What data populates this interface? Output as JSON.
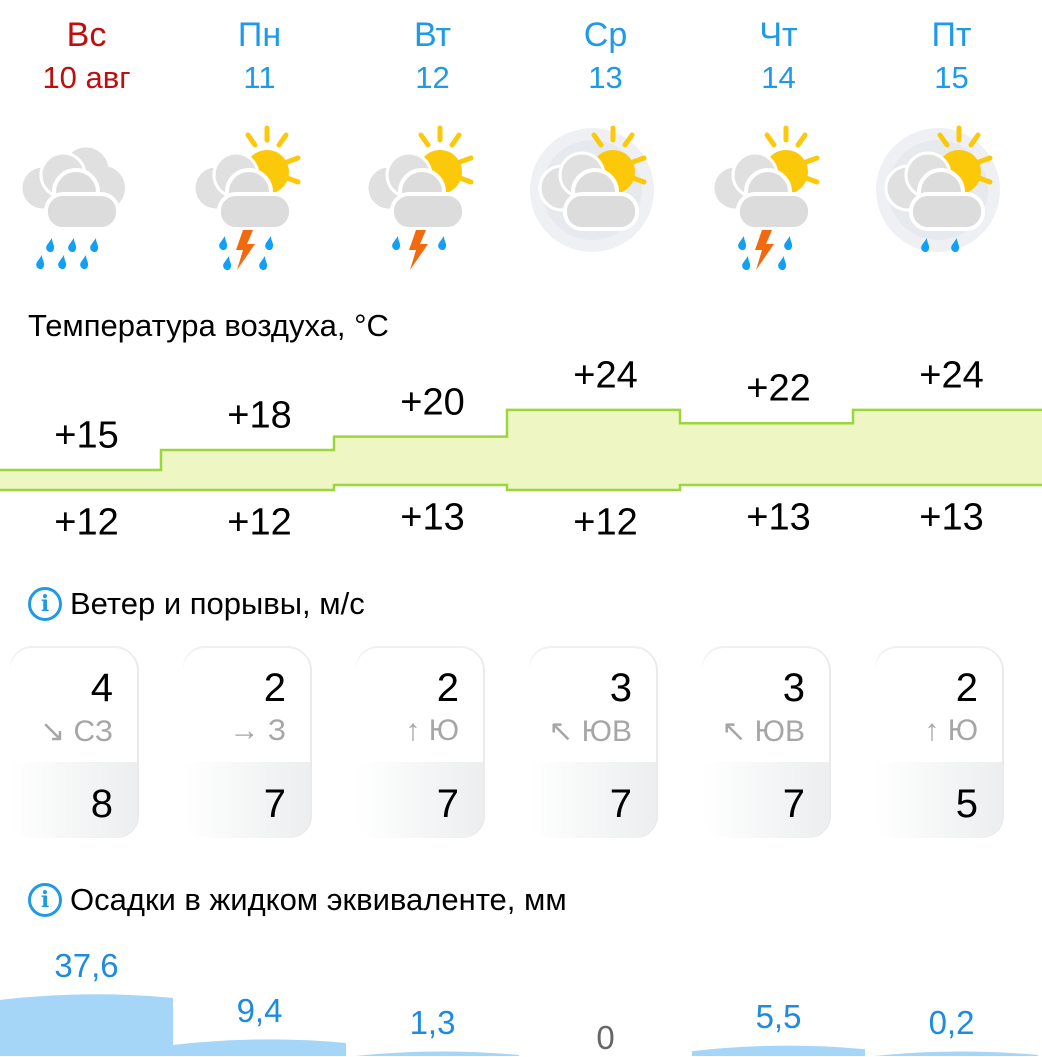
{
  "days": [
    {
      "dow": "Вс",
      "date": "10 авг",
      "weekend": true,
      "icon": "cloudy-heavy-rain-icon",
      "tmax": 15,
      "tmin": 12,
      "wind": "4",
      "dir_arrow": "↘",
      "dir": "СЗ",
      "gust": "8",
      "precip": 37.6,
      "precip_label": "37,6"
    },
    {
      "dow": "Пн",
      "date": "11",
      "weekend": false,
      "icon": "partly-cloudy-thunderstorm-rain-icon",
      "tmax": 18,
      "tmin": 12,
      "wind": "2",
      "dir_arrow": "→",
      "dir": "З",
      "gust": "7",
      "precip": 9.4,
      "precip_label": "9,4"
    },
    {
      "dow": "Вт",
      "date": "12",
      "weekend": false,
      "icon": "partly-cloudy-thunderstorm-icon",
      "tmax": 20,
      "tmin": 13,
      "wind": "2",
      "dir_arrow": "↑",
      "dir": "Ю",
      "gust": "7",
      "precip": 1.3,
      "precip_label": "1,3"
    },
    {
      "dow": "Ср",
      "date": "13",
      "weekend": false,
      "icon": "partly-cloudy-fog-icon",
      "tmax": 24,
      "tmin": 12,
      "wind": "3",
      "dir_arrow": "↖",
      "dir": "ЮВ",
      "gust": "7",
      "precip": 0,
      "precip_label": "0"
    },
    {
      "dow": "Чт",
      "date": "14",
      "weekend": false,
      "icon": "partly-cloudy-thunderstorm-rain-icon",
      "tmax": 22,
      "tmin": 13,
      "wind": "3",
      "dir_arrow": "↖",
      "dir": "ЮВ",
      "gust": "7",
      "precip": 5.5,
      "precip_label": "5,5"
    },
    {
      "dow": "Пт",
      "date": "15",
      "weekend": false,
      "icon": "partly-cloudy-fog-light-rain-icon",
      "tmax": 24,
      "tmin": 13,
      "wind": "2",
      "dir_arrow": "↑",
      "dir": "Ю",
      "gust": "5",
      "precip": 0.2,
      "precip_label": "0,2"
    }
  ],
  "sections": {
    "temperature": "Температура воздуха, °C",
    "wind": "Ветер и порывы, м/с",
    "precip": "Осадки в жидком эквиваленте, мм",
    "info_icon": "i"
  },
  "colors": {
    "accent": "#1e9ae8",
    "weekend": "#c00d0d",
    "temp_fill": "#eef7c4",
    "temp_line": "#9bd63a",
    "precip_fill": "#a6d6f7"
  }
}
